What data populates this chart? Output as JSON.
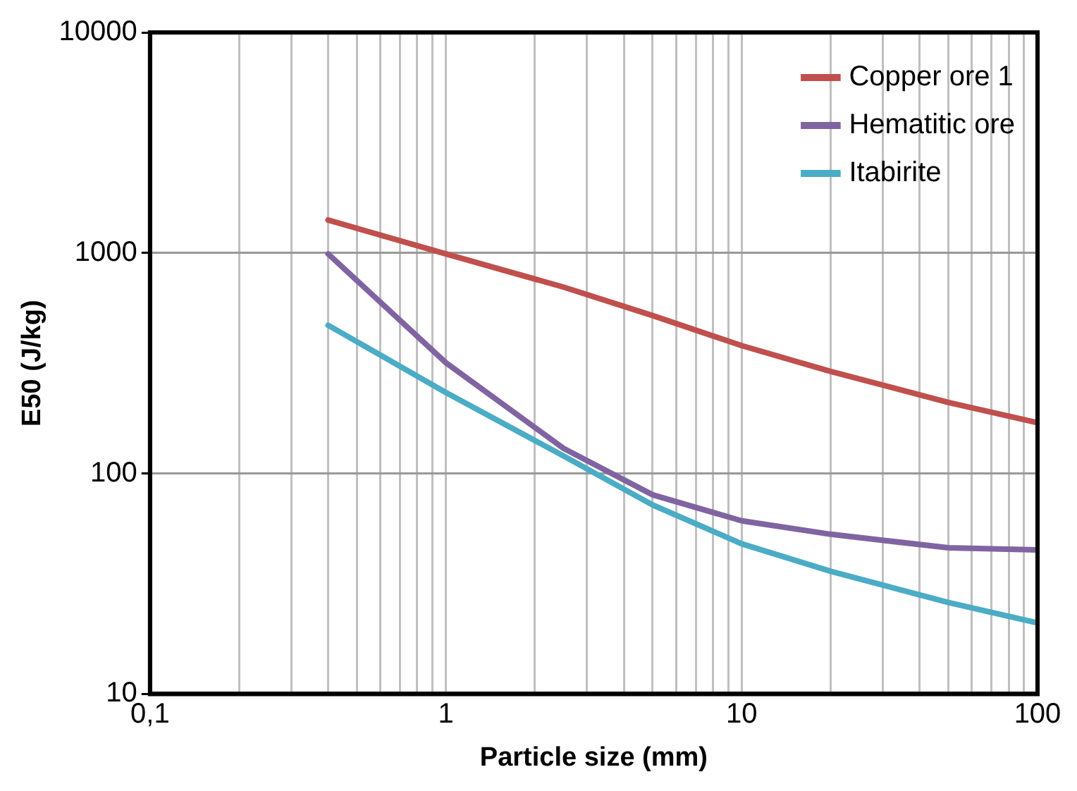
{
  "chart_data": {
    "type": "line",
    "xlabel": "Particle size (mm)",
    "ylabel": "E50 (J/kg)",
    "x": [
      0.4,
      1,
      2.5,
      5,
      10,
      20,
      50,
      100
    ],
    "series": [
      {
        "name": "Copper ore 1",
        "color": "#c0504d",
        "values": [
          1410,
          990,
          700,
          520,
          380,
          290,
          210,
          170
        ]
      },
      {
        "name": "Hematitic ore",
        "color": "#8064a2",
        "values": [
          990,
          318,
          130,
          80,
          61,
          53,
          46,
          45
        ]
      },
      {
        "name": "Itabirite",
        "color": "#4bacc6",
        "values": [
          470,
          233,
          120,
          72,
          48,
          36,
          26,
          21
        ]
      }
    ],
    "log": "xy",
    "xlim": [
      0.1,
      100
    ],
    "ylim": [
      10,
      10000
    ],
    "xticks": [
      {
        "value": 0.1,
        "label": "0,1"
      },
      {
        "value": 0.2,
        "label": null
      },
      {
        "value": 0.3,
        "label": null
      },
      {
        "value": 0.4,
        "label": null
      },
      {
        "value": 0.5,
        "label": null
      },
      {
        "value": 0.6,
        "label": null
      },
      {
        "value": 0.7,
        "label": null
      },
      {
        "value": 0.8,
        "label": null
      },
      {
        "value": 0.9,
        "label": null
      },
      1,
      {
        "value": 2,
        "label": null
      },
      {
        "value": 3,
        "label": null
      },
      {
        "value": 4,
        "label": null
      },
      {
        "value": 5,
        "label": null
      },
      {
        "value": 6,
        "label": null
      },
      {
        "value": 7,
        "label": null
      },
      {
        "value": 8,
        "label": null
      },
      {
        "value": 9,
        "label": null
      },
      10,
      {
        "value": 20,
        "label": null
      },
      {
        "value": 30,
        "label": null
      },
      {
        "value": 40,
        "label": null
      },
      {
        "value": 50,
        "label": null
      },
      {
        "value": 60,
        "label": null
      },
      {
        "value": 70,
        "label": null
      },
      {
        "value": 80,
        "label": null
      },
      {
        "value": 90,
        "label": null
      },
      100
    ],
    "yticks": [
      10,
      100,
      1000,
      10000
    ],
    "grid": true,
    "legend": "top right",
    "marker": "none",
    "line_style": "solid"
  }
}
